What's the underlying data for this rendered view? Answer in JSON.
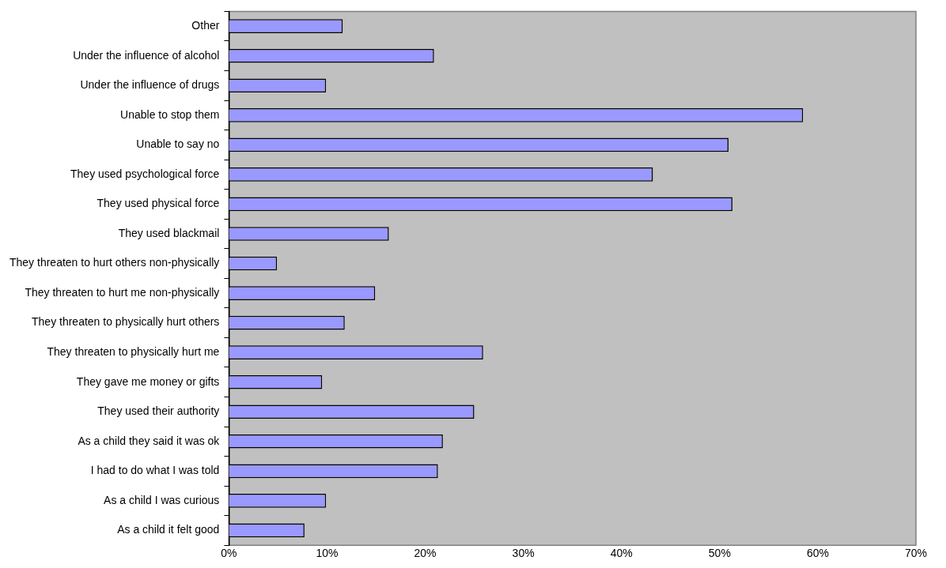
{
  "chart_data": {
    "type": "bar",
    "orientation": "horizontal",
    "categories": [
      "Other",
      "Under the influence of alcohol",
      "Under the influence of drugs",
      "Unable to stop them",
      "Unable to say no",
      "They used psychological force",
      "They used physical force",
      "They used blackmail",
      "They threaten to hurt others non-physically",
      "They threaten to hurt me non-physically",
      "They threaten to physically hurt others",
      "They threaten to physically hurt me",
      "They gave me money or gifts",
      "They used their authority",
      "As a child they said it was ok",
      "I had to do what I was told",
      "As a child I was curious",
      "As a child it felt good"
    ],
    "values": [
      11.6,
      20.9,
      9.9,
      58.5,
      50.9,
      43.2,
      51.3,
      16.3,
      4.9,
      14.9,
      11.8,
      25.9,
      9.5,
      25.0,
      21.8,
      21.3,
      9.9,
      7.7
    ],
    "color": "#9999ff",
    "xlim": [
      0,
      70
    ],
    "xticks": [
      {
        "value": 0,
        "label": "0%"
      },
      {
        "value": 10,
        "label": "10%"
      },
      {
        "value": 20,
        "label": "20%"
      },
      {
        "value": 30,
        "label": "30%"
      },
      {
        "value": 40,
        "label": "40%"
      },
      {
        "value": 50,
        "label": "50%"
      },
      {
        "value": 60,
        "label": "60%"
      },
      {
        "value": 70,
        "label": "70%"
      }
    ],
    "grid": false,
    "legend": false
  }
}
